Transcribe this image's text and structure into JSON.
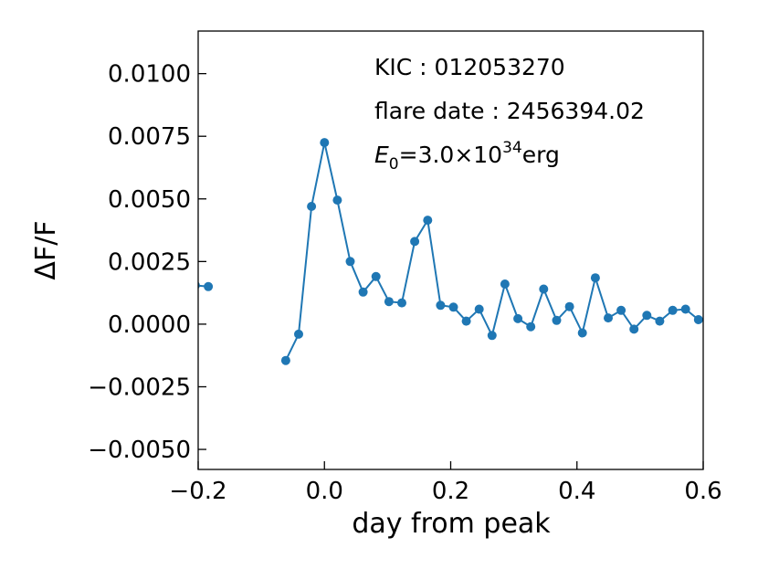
{
  "chart_data": {
    "type": "line",
    "title": "",
    "xlabel": "day from peak",
    "ylabel": "ΔF/F",
    "xlim": [
      -0.2,
      0.6
    ],
    "ylim": [
      -0.0058,
      0.0117
    ],
    "grid": false,
    "legend": "none",
    "x_ticks": [
      -0.2,
      0.0,
      0.2,
      0.4,
      0.6
    ],
    "x_tick_labels": [
      "−0.2",
      "0.0",
      "0.2",
      "0.4",
      "0.6"
    ],
    "y_ticks": [
      -0.005,
      -0.0025,
      0.0,
      0.0025,
      0.005,
      0.0075,
      0.01
    ],
    "y_tick_labels": [
      "−0.0050",
      "−0.0025",
      "0.0000",
      "0.0025",
      "0.0050",
      "0.0075",
      "0.0100"
    ],
    "annotations": {
      "kic": "KIC : 012053270",
      "flare_date": "flare date : 2456394.02",
      "energy_symbol": "E",
      "energy_subscript": "0",
      "energy_value": "=3.0×10",
      "energy_exponent": "34",
      "energy_unit": "erg"
    },
    "series_color": "#1f77b4",
    "series": [
      {
        "segments": [
          [
            {
              "x": -0.2045,
              "y": 0.00155
            },
            {
              "x": -0.184,
              "y": 0.0015
            }
          ],
          [
            {
              "x": -0.0613,
              "y": -0.00145
            },
            {
              "x": -0.0409,
              "y": -0.0004
            },
            {
              "x": -0.0204,
              "y": 0.0047
            },
            {
              "x": 0.0,
              "y": 0.00725
            },
            {
              "x": 0.0204,
              "y": 0.00495
            },
            {
              "x": 0.0409,
              "y": 0.0025
            },
            {
              "x": 0.0613,
              "y": 0.00128
            },
            {
              "x": 0.0817,
              "y": 0.0019
            },
            {
              "x": 0.1022,
              "y": 0.0009
            },
            {
              "x": 0.1226,
              "y": 0.00085
            },
            {
              "x": 0.143,
              "y": 0.0033
            },
            {
              "x": 0.1635,
              "y": 0.00415
            },
            {
              "x": 0.1839,
              "y": 0.00075
            },
            {
              "x": 0.2043,
              "y": 0.00068
            },
            {
              "x": 0.2247,
              "y": 0.00012
            },
            {
              "x": 0.2452,
              "y": 0.0006
            },
            {
              "x": 0.2656,
              "y": -0.00045
            },
            {
              "x": 0.286,
              "y": 0.0016
            },
            {
              "x": 0.3065,
              "y": 0.00022
            },
            {
              "x": 0.3269,
              "y": -0.0001
            },
            {
              "x": 0.3473,
              "y": 0.0014
            },
            {
              "x": 0.3678,
              "y": 0.00015
            },
            {
              "x": 0.3882,
              "y": 0.0007
            },
            {
              "x": 0.4086,
              "y": -0.00035
            },
            {
              "x": 0.4291,
              "y": 0.00185
            },
            {
              "x": 0.4495,
              "y": 0.00025
            },
            {
              "x": 0.4699,
              "y": 0.00055
            },
            {
              "x": 0.4904,
              "y": -0.0002
            },
            {
              "x": 0.5108,
              "y": 0.00035
            },
            {
              "x": 0.5312,
              "y": 0.00012
            },
            {
              "x": 0.5517,
              "y": 0.00055
            },
            {
              "x": 0.5721,
              "y": 0.0006
            },
            {
              "x": 0.5925,
              "y": 0.00018
            }
          ]
        ]
      }
    ]
  }
}
